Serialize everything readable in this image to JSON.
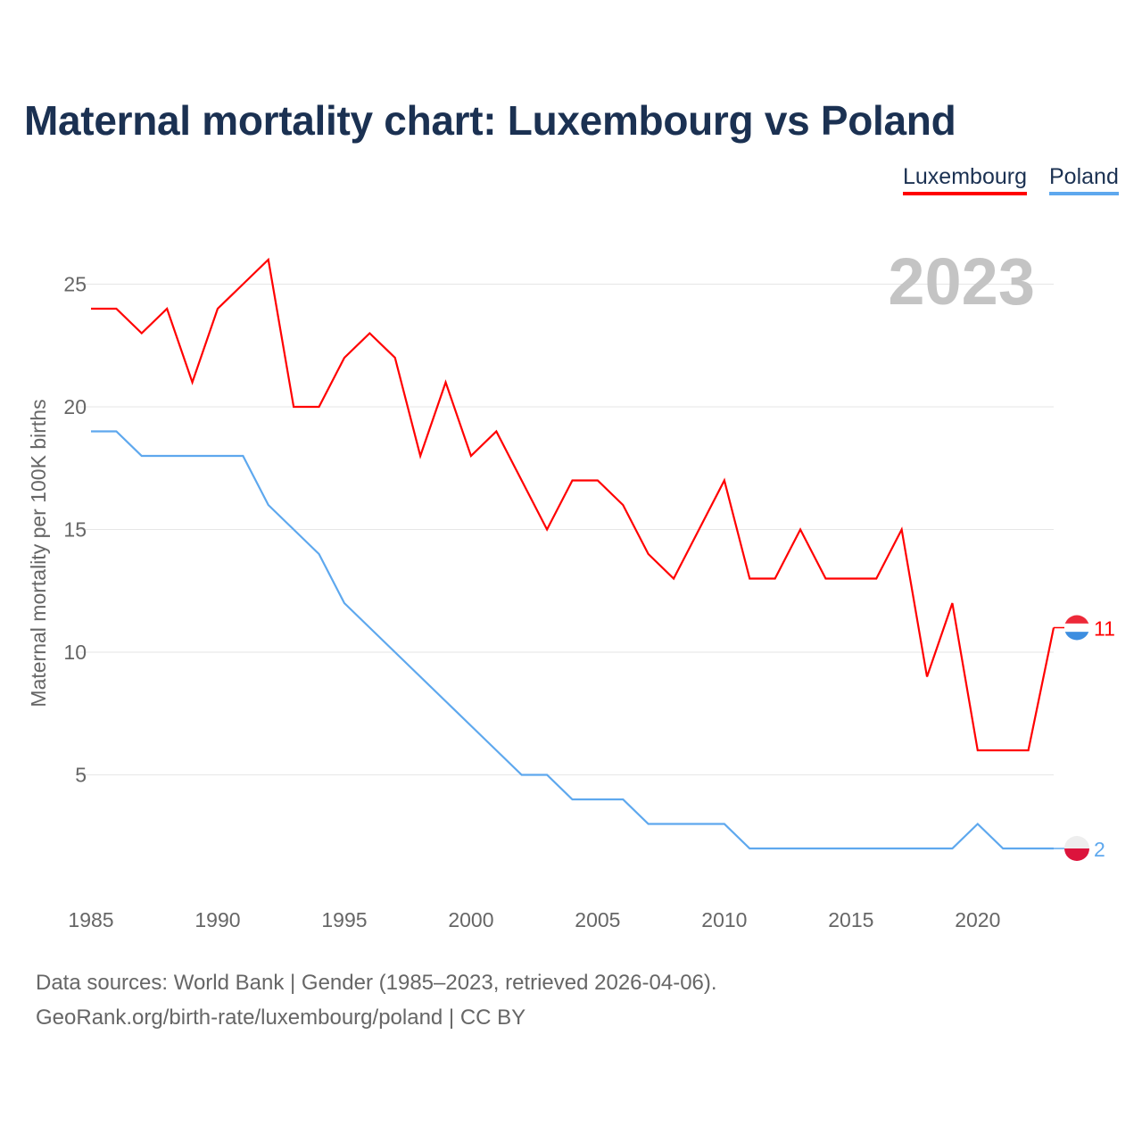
{
  "title": "Maternal mortality chart: Luxembourg vs Poland",
  "legend": [
    "Luxembourg",
    "Poland"
  ],
  "footer": {
    "line1": "Data sources: World Bank | Gender (1985–2023, retrieved 2026-04-06).",
    "line2": "GeoRank.org/birth-rate/luxembourg/poland | CC BY"
  },
  "chart_data": {
    "type": "line",
    "title": "Maternal mortality chart: Luxembourg vs Poland",
    "ylabel": "Maternal mortality per 100K births",
    "xlabel": "",
    "year_label": "2023",
    "xlim": [
      1985,
      2023
    ],
    "ylim": [
      0,
      27.5
    ],
    "xticks": [
      1985,
      1990,
      1995,
      2000,
      2005,
      2010,
      2015,
      2020
    ],
    "yticks": [
      5,
      10,
      15,
      20,
      25
    ],
    "grid": true,
    "legend_position": "top-right",
    "x": [
      1985,
      1986,
      1987,
      1988,
      1989,
      1990,
      1991,
      1992,
      1993,
      1994,
      1995,
      1996,
      1997,
      1998,
      1999,
      2000,
      2001,
      2002,
      2003,
      2004,
      2005,
      2006,
      2007,
      2008,
      2009,
      2010,
      2011,
      2012,
      2013,
      2014,
      2015,
      2016,
      2017,
      2018,
      2019,
      2020,
      2021,
      2022,
      2023
    ],
    "series": [
      {
        "name": "Luxembourg",
        "color": "#ff0000",
        "end_label": "11",
        "values": [
          24,
          24,
          23,
          24,
          21,
          24,
          25,
          26,
          20,
          20,
          22,
          23,
          22,
          18,
          21,
          18,
          19,
          17,
          15,
          17,
          17,
          16,
          14,
          13,
          15,
          17,
          13,
          13,
          15,
          13,
          13,
          13,
          15,
          9,
          12,
          6,
          6,
          6,
          11
        ]
      },
      {
        "name": "Poland",
        "color": "#5ea8ee",
        "end_label": "2",
        "values": [
          19,
          19,
          18,
          18,
          18,
          18,
          18,
          16,
          15,
          14,
          12,
          11,
          10,
          9,
          8,
          7,
          6,
          5,
          5,
          4,
          4,
          4,
          3,
          3,
          3,
          3,
          2,
          2,
          2,
          2,
          2,
          2,
          2,
          2,
          2,
          3,
          2,
          2,
          2
        ]
      }
    ]
  }
}
